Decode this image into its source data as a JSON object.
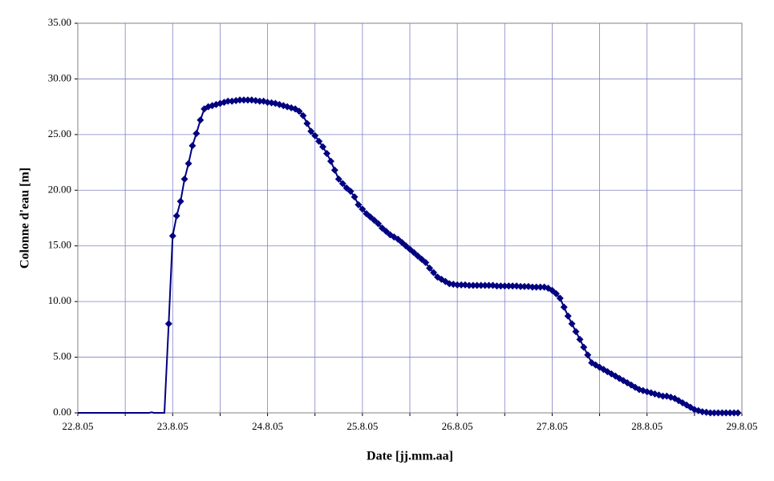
{
  "chart_data": {
    "type": "line",
    "x_label": "Date [jj.mm.aa]",
    "y_label": "Colonne d'eau [m]",
    "xlim": [
      22,
      29
    ],
    "ylim": [
      0,
      35
    ],
    "xticks": [
      {
        "value": 22,
        "label": "22.8.05"
      },
      {
        "value": 22.5,
        "label": null
      },
      {
        "value": 23,
        "label": "23.8.05"
      },
      {
        "value": 23.5,
        "label": null
      },
      {
        "value": 24,
        "label": "24.8.05"
      },
      {
        "value": 24.5,
        "label": null
      },
      {
        "value": 25,
        "label": "25.8.05"
      },
      {
        "value": 25.5,
        "label": null
      },
      {
        "value": 26,
        "label": "26.8.05"
      },
      {
        "value": 26.5,
        "label": null
      },
      {
        "value": 27,
        "label": "27.8.05"
      },
      {
        "value": 27.5,
        "label": null
      },
      {
        "value": 28,
        "label": "28.8.05"
      },
      {
        "value": 28.5,
        "label": null
      },
      {
        "value": 29,
        "label": "29.8.05"
      }
    ],
    "yticks": [
      {
        "value": 0,
        "label": "0.00"
      },
      {
        "value": 5,
        "label": "5.00"
      },
      {
        "value": 10,
        "label": "10.00"
      },
      {
        "value": 15,
        "label": "15.00"
      },
      {
        "value": 20,
        "label": "20.00"
      },
      {
        "value": 25,
        "label": "25.00"
      },
      {
        "value": 30,
        "label": "30.00"
      },
      {
        "value": 35,
        "label": "35.00"
      }
    ],
    "grid": true,
    "series": [
      {
        "color": "#000080",
        "markers": false,
        "x": [
          22,
          22.75,
          22.78,
          22.8,
          22.913,
          22.958
        ],
        "values": [
          0,
          0,
          0.05,
          0,
          0,
          8.0
        ]
      },
      {
        "color": "#000080",
        "markers": true,
        "x": [
          22.958,
          23,
          23.042,
          23.083,
          23.125,
          23.167,
          23.208,
          23.25,
          23.292,
          23.333,
          23.375,
          23.417,
          23.458,
          23.5,
          23.542,
          23.583,
          23.625,
          23.667,
          23.708,
          23.75,
          23.792,
          23.833,
          23.875,
          23.917,
          23.958,
          24,
          24.042,
          24.083,
          24.125,
          24.167,
          24.208,
          24.25,
          24.292,
          24.333,
          24.375,
          24.417,
          24.458,
          24.5,
          24.542,
          24.583,
          24.625,
          24.667,
          24.708,
          24.75,
          24.792,
          24.833,
          24.875,
          24.917,
          24.958,
          25,
          25.042,
          25.083,
          25.125,
          25.167,
          25.208,
          25.25,
          25.292,
          25.333,
          25.375,
          25.417,
          25.458,
          25.5,
          25.542,
          25.583,
          25.625,
          25.667,
          25.708,
          25.75,
          25.792,
          25.833,
          25.875,
          25.917,
          25.958,
          26,
          26.042,
          26.083,
          26.125,
          26.167,
          26.208,
          26.25,
          26.292,
          26.333,
          26.375,
          26.417,
          26.458,
          26.5,
          26.542,
          26.583,
          26.625,
          26.667,
          26.708,
          26.75,
          26.792,
          26.833,
          26.875,
          26.917,
          26.958,
          27,
          27.042,
          27.083,
          27.125,
          27.167,
          27.208,
          27.25,
          27.292,
          27.333,
          27.375,
          27.417,
          27.458,
          27.5,
          27.542,
          27.583,
          27.625,
          27.667,
          27.708,
          27.75,
          27.792,
          27.833,
          27.875,
          27.917,
          27.958,
          28,
          28.042,
          28.083,
          28.125,
          28.167,
          28.208,
          28.25,
          28.292,
          28.333,
          28.375,
          28.417,
          28.458,
          28.5,
          28.542,
          28.583,
          28.625,
          28.667,
          28.708,
          28.75,
          28.792,
          28.833,
          28.875,
          28.917,
          28.958
        ],
        "values": [
          8.0,
          15.9,
          17.7,
          19.0,
          21.0,
          22.4,
          24.0,
          25.1,
          26.3,
          27.3,
          27.5,
          27.6,
          27.7,
          27.8,
          27.9,
          28.0,
          28.0,
          28.05,
          28.1,
          28.1,
          28.1,
          28.1,
          28.05,
          28.0,
          28.0,
          27.9,
          27.85,
          27.8,
          27.7,
          27.6,
          27.5,
          27.4,
          27.3,
          27.1,
          26.7,
          26.0,
          25.3,
          24.9,
          24.4,
          23.9,
          23.3,
          22.6,
          21.8,
          21.0,
          20.6,
          20.2,
          19.9,
          19.4,
          18.7,
          18.3,
          17.9,
          17.6,
          17.3,
          17.0,
          16.6,
          16.3,
          16.0,
          15.8,
          15.6,
          15.3,
          15.0,
          14.7,
          14.4,
          14.1,
          13.8,
          13.5,
          13.0,
          12.6,
          12.2,
          12.0,
          11.8,
          11.6,
          11.55,
          11.5,
          11.5,
          11.5,
          11.45,
          11.45,
          11.45,
          11.45,
          11.45,
          11.45,
          11.45,
          11.4,
          11.4,
          11.4,
          11.4,
          11.4,
          11.4,
          11.35,
          11.35,
          11.35,
          11.3,
          11.3,
          11.3,
          11.3,
          11.2,
          11.0,
          10.7,
          10.3,
          9.5,
          8.7,
          8.0,
          7.3,
          6.6,
          5.9,
          5.2,
          4.5,
          4.3,
          4.1,
          3.9,
          3.7,
          3.5,
          3.3,
          3.1,
          2.9,
          2.7,
          2.5,
          2.3,
          2.1,
          2.0,
          1.9,
          1.8,
          1.7,
          1.6,
          1.5,
          1.5,
          1.4,
          1.3,
          1.1,
          0.9,
          0.7,
          0.5,
          0.3,
          0.2,
          0.1,
          0.05,
          0,
          0,
          0,
          0,
          0,
          0,
          0,
          0
        ]
      }
    ]
  }
}
